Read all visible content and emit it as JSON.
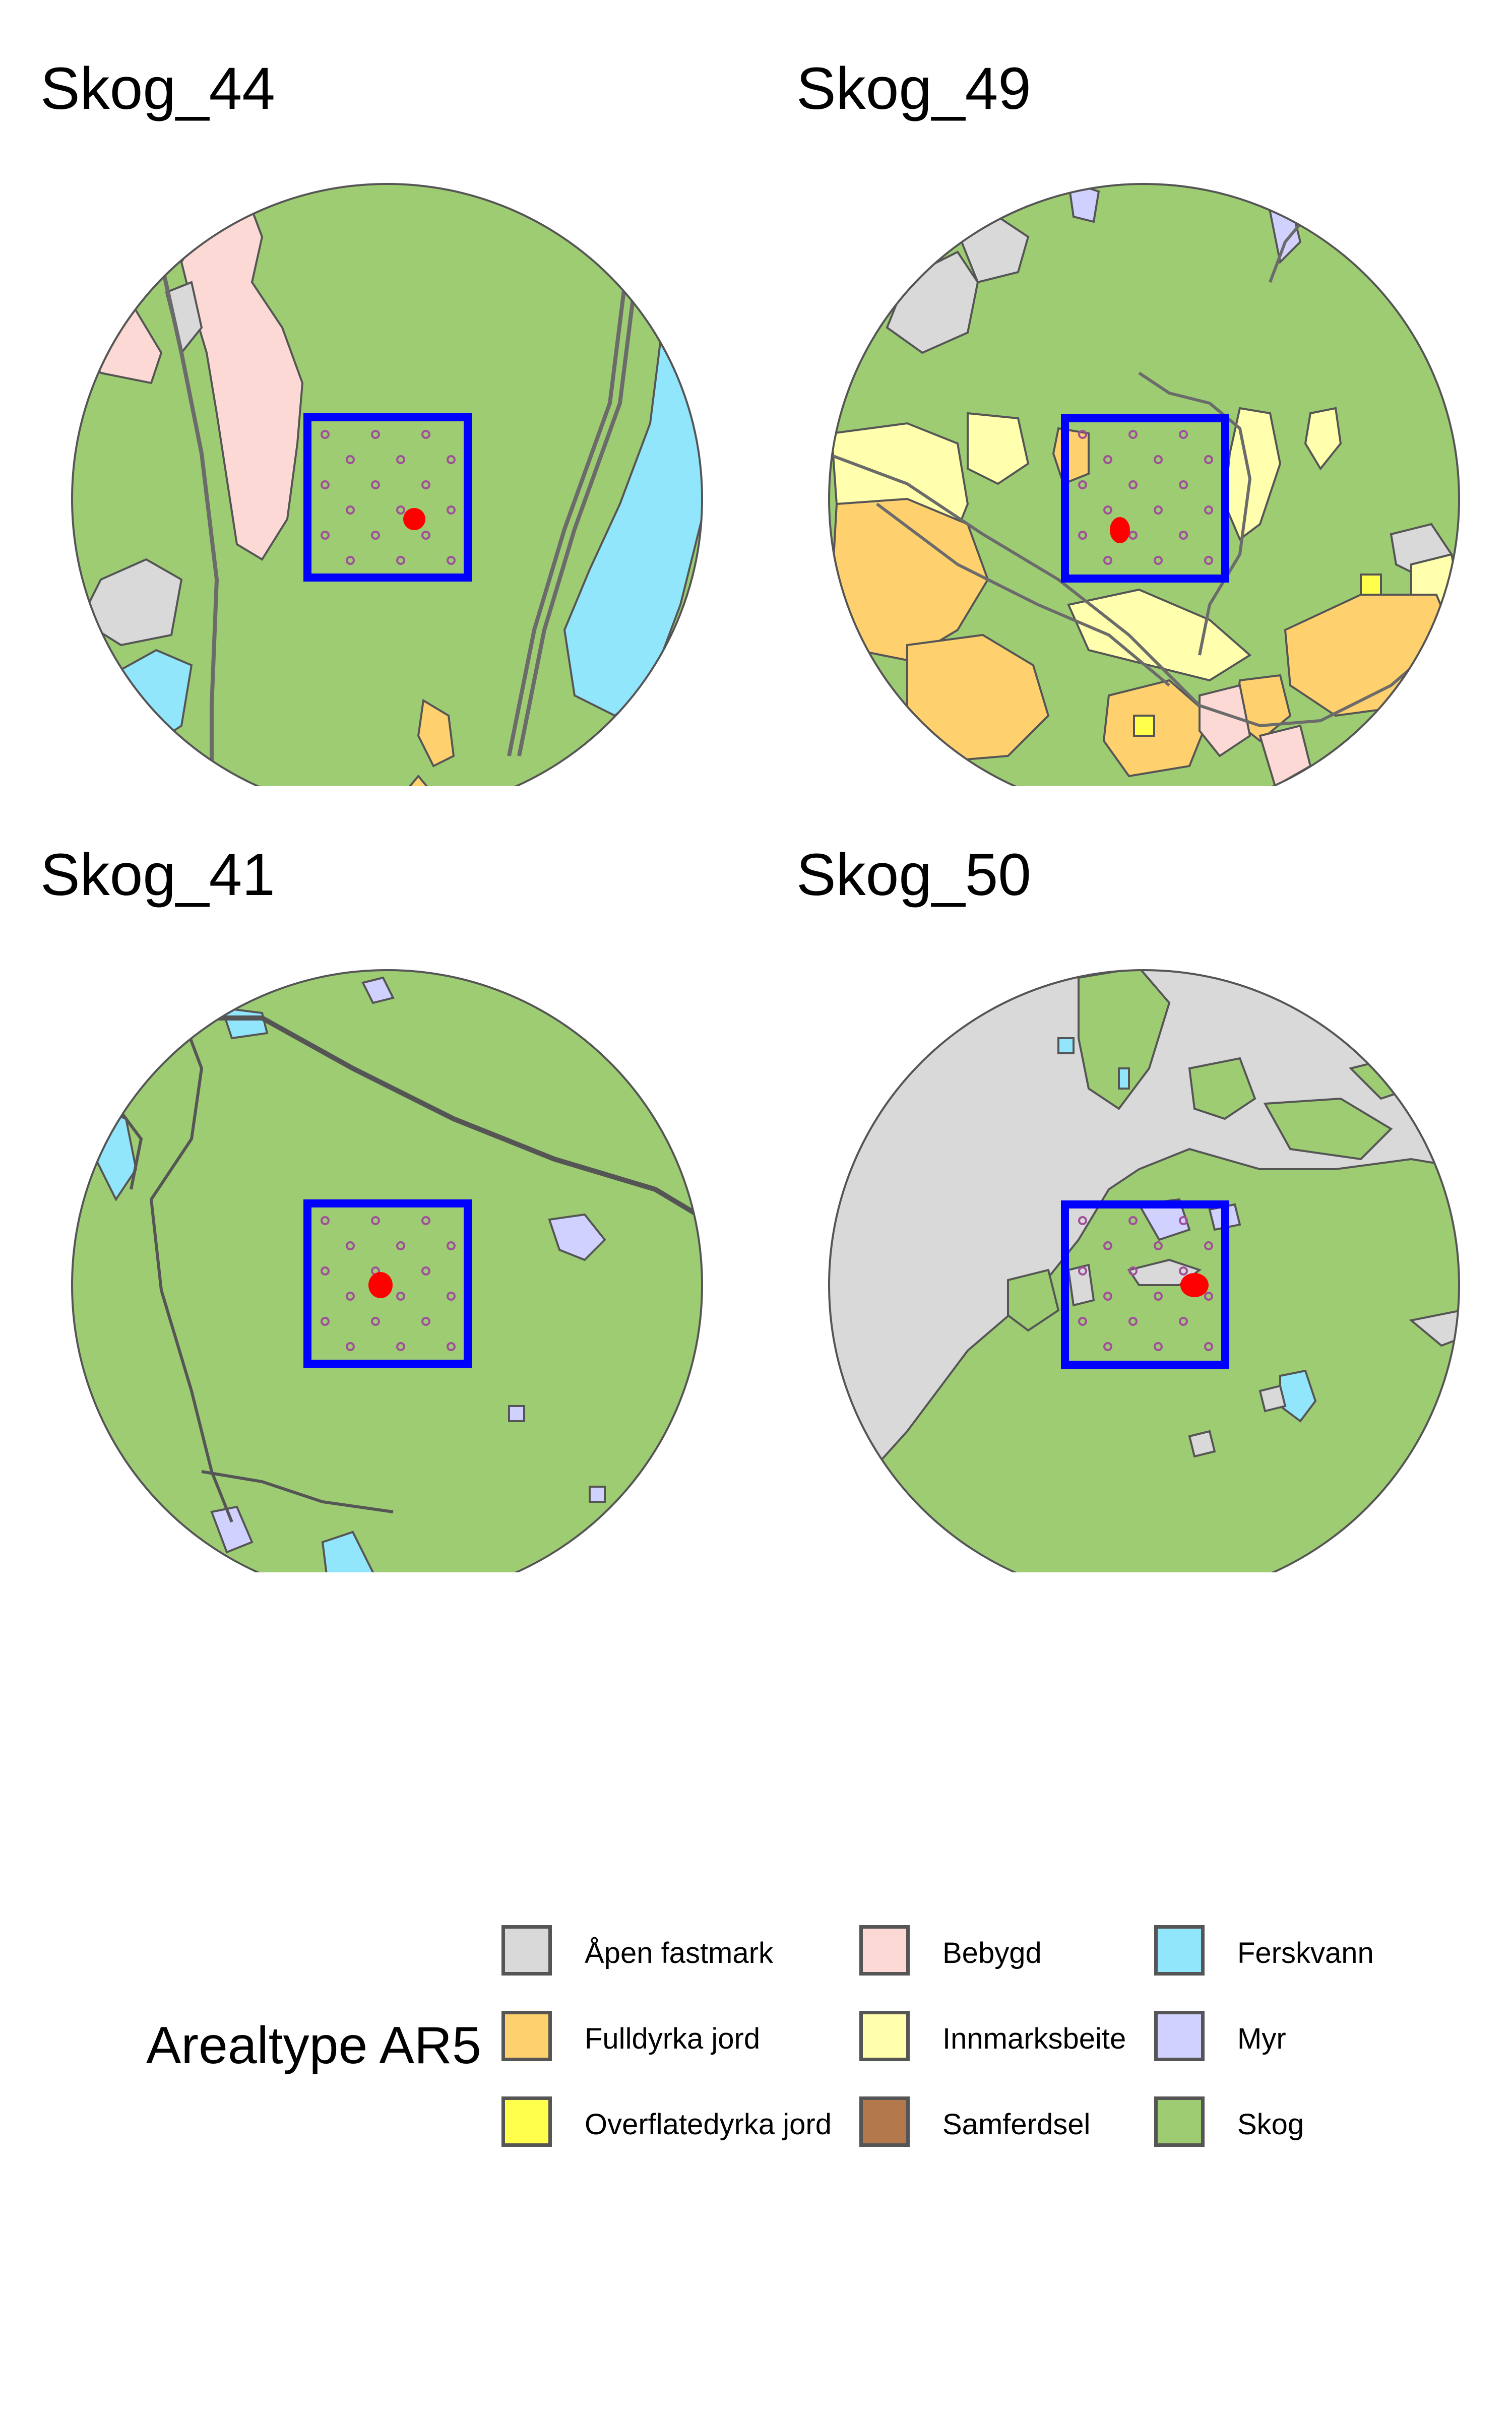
{
  "colors": {
    "apen_fastmark": "#d9d9d9",
    "bebygd": "#fcd9d4",
    "ferskvann": "#91e6fc",
    "fulldyrka_jord": "#ffd16e",
    "innmarksbeite": "#ffffad",
    "myr": "#d1d1ff",
    "overflatedyrka_jord": "#ffff4c",
    "samferdsel": "#b3784c",
    "skog": "#9ecc73",
    "border": "#555555",
    "road": "#6b6b6b",
    "frame": "#0000ff",
    "sample_dot": "#ff0000",
    "grid_point": "#a0509a"
  },
  "maps": [
    {
      "title": "Skog_44",
      "icon": "land-cover-map"
    },
    {
      "title": "Skog_49",
      "icon": "land-cover-map"
    },
    {
      "title": "Skog_41",
      "icon": "land-cover-map"
    },
    {
      "title": "Skog_50",
      "icon": "land-cover-map"
    }
  ],
  "legend": {
    "title": "Arealtype AR5",
    "items": [
      {
        "label": "Åpen fastmark",
        "color": "#d9d9d9"
      },
      {
        "label": "Bebygd",
        "color": "#fcd9d4"
      },
      {
        "label": "Ferskvann",
        "color": "#91e6fc"
      },
      {
        "label": "Fulldyrka jord",
        "color": "#ffd16e"
      },
      {
        "label": "Innmarksbeite",
        "color": "#ffffad"
      },
      {
        "label": "Myr",
        "color": "#d1d1ff"
      },
      {
        "label": "Overflatedyrka jord",
        "color": "#ffff4c"
      },
      {
        "label": "Samferdsel",
        "color": "#b3784c"
      },
      {
        "label": "Skog",
        "color": "#9ecc73"
      }
    ]
  }
}
